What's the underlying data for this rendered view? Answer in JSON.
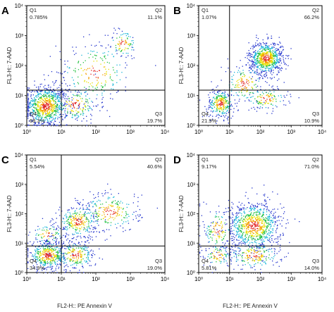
{
  "chart_data": [
    {
      "type": "scatter",
      "panel_label": "A",
      "xlabel": "",
      "ylabel": "FL3-H:: 7-AAD",
      "x_scale": "log",
      "y_scale": "log",
      "xlim": [
        1,
        10000
      ],
      "ylim": [
        1,
        10000
      ],
      "x_ticks": [
        "10⁰",
        "10¹",
        "10²",
        "10³",
        "10⁴"
      ],
      "y_ticks": [
        "10⁰",
        "10¹",
        "10²",
        "10³",
        "10⁴"
      ],
      "gate": {
        "x": 10,
        "y": 15
      },
      "quadrants": [
        {
          "name": "Q1",
          "percent": "0.785%"
        },
        {
          "name": "Q2",
          "percent": "11.1%"
        },
        {
          "name": "Q3",
          "percent": "19.7%"
        },
        {
          "name": "Q4",
          "percent": "68.3%"
        }
      ],
      "clusters": [
        {
          "x": 3.5,
          "y": 4.5,
          "spread_x": 0.32,
          "spread_y": 0.35,
          "weight": 0.62
        },
        {
          "x": 25,
          "y": 5,
          "spread_x": 0.35,
          "spread_y": 0.3,
          "weight": 0.13
        },
        {
          "x": 600,
          "y": 550,
          "spread_x": 0.22,
          "spread_y": 0.25,
          "weight": 0.07
        },
        {
          "x": 90,
          "y": 60,
          "spread_x": 0.55,
          "spread_y": 0.55,
          "weight": 0.18
        }
      ]
    },
    {
      "type": "scatter",
      "panel_label": "B",
      "xlabel": "",
      "ylabel": "FL3-H:: 7-AAD",
      "x_scale": "log",
      "y_scale": "log",
      "xlim": [
        1,
        10000
      ],
      "ylim": [
        1,
        10000
      ],
      "x_ticks": [
        "10⁰",
        "10¹",
        "10²",
        "10³",
        "10⁴"
      ],
      "y_ticks": [
        "10⁰",
        "10¹",
        "10²",
        "10³",
        "10⁴"
      ],
      "gate": {
        "x": 10,
        "y": 15
      },
      "quadrants": [
        {
          "name": "Q1",
          "percent": "1.07%"
        },
        {
          "name": "Q2",
          "percent": "66.2%"
        },
        {
          "name": "Q3",
          "percent": "10.9%"
        },
        {
          "name": "Q4",
          "percent": "21.9%"
        }
      ],
      "clusters": [
        {
          "x": 150,
          "y": 180,
          "spread_x": 0.28,
          "spread_y": 0.28,
          "weight": 0.56
        },
        {
          "x": 5,
          "y": 5.5,
          "spread_x": 0.22,
          "spread_y": 0.25,
          "weight": 0.22
        },
        {
          "x": 30,
          "y": 25,
          "spread_x": 0.35,
          "spread_y": 0.35,
          "weight": 0.12
        },
        {
          "x": 150,
          "y": 8,
          "spread_x": 0.35,
          "spread_y": 0.2,
          "weight": 0.1
        }
      ]
    },
    {
      "type": "scatter",
      "panel_label": "C",
      "xlabel": "",
      "ylabel": "FL3-H:: 7-AAD",
      "x_scale": "log",
      "y_scale": "log",
      "xlim": [
        1,
        10000
      ],
      "ylim": [
        1,
        10000
      ],
      "x_ticks": [
        "10⁰",
        "10¹",
        "10²",
        "10³",
        "10⁴"
      ],
      "y_ticks": [
        "10⁰",
        "10¹",
        "10²",
        "10³",
        "10⁴"
      ],
      "gate": {
        "x": 10,
        "y": 8
      },
      "quadrants": [
        {
          "name": "Q1",
          "percent": "5.54%"
        },
        {
          "name": "Q2",
          "percent": "40.6%"
        },
        {
          "name": "Q3",
          "percent": "19.0%"
        },
        {
          "name": "Q4",
          "percent": "34.9%"
        }
      ],
      "clusters": [
        {
          "x": 4,
          "y": 4,
          "spread_x": 0.3,
          "spread_y": 0.25,
          "weight": 0.34
        },
        {
          "x": 25,
          "y": 4,
          "spread_x": 0.3,
          "spread_y": 0.25,
          "weight": 0.19
        },
        {
          "x": 30,
          "y": 55,
          "spread_x": 0.3,
          "spread_y": 0.3,
          "weight": 0.22
        },
        {
          "x": 250,
          "y": 120,
          "spread_x": 0.45,
          "spread_y": 0.35,
          "weight": 0.19
        },
        {
          "x": 4,
          "y": 20,
          "spread_x": 0.25,
          "spread_y": 0.2,
          "weight": 0.06
        }
      ]
    },
    {
      "type": "scatter",
      "panel_label": "D",
      "xlabel": "FL2-H:: PE Annexin V",
      "ylabel": "FL3-H:: 7-AAD",
      "x_scale": "log",
      "y_scale": "log",
      "xlim": [
        1,
        10000
      ],
      "ylim": [
        1,
        10000
      ],
      "x_ticks": [
        "10⁰",
        "10¹",
        "10²",
        "10³",
        "10⁴"
      ],
      "y_ticks": [
        "10⁰",
        "10¹",
        "10²",
        "10³",
        "10⁴"
      ],
      "gate": {
        "x": 10,
        "y": 8
      },
      "quadrants": [
        {
          "name": "Q1",
          "percent": "9.17%"
        },
        {
          "name": "Q2",
          "percent": "71.0%"
        },
        {
          "name": "Q3",
          "percent": "14.0%"
        },
        {
          "name": "Q4",
          "percent": "5.81%"
        }
      ],
      "clusters": [
        {
          "x": 60,
          "y": 40,
          "spread_x": 0.45,
          "spread_y": 0.42,
          "weight": 0.68
        },
        {
          "x": 4,
          "y": 30,
          "spread_x": 0.25,
          "spread_y": 0.4,
          "weight": 0.1
        },
        {
          "x": 60,
          "y": 4,
          "spread_x": 0.45,
          "spread_y": 0.25,
          "weight": 0.15
        },
        {
          "x": 4,
          "y": 4,
          "spread_x": 0.25,
          "spread_y": 0.2,
          "weight": 0.07
        }
      ]
    }
  ],
  "bottom_xlabel_left": "FL2-H:: PE Annexin V",
  "bottom_xlabel_right": "FL2-H:: PE Annexin V"
}
